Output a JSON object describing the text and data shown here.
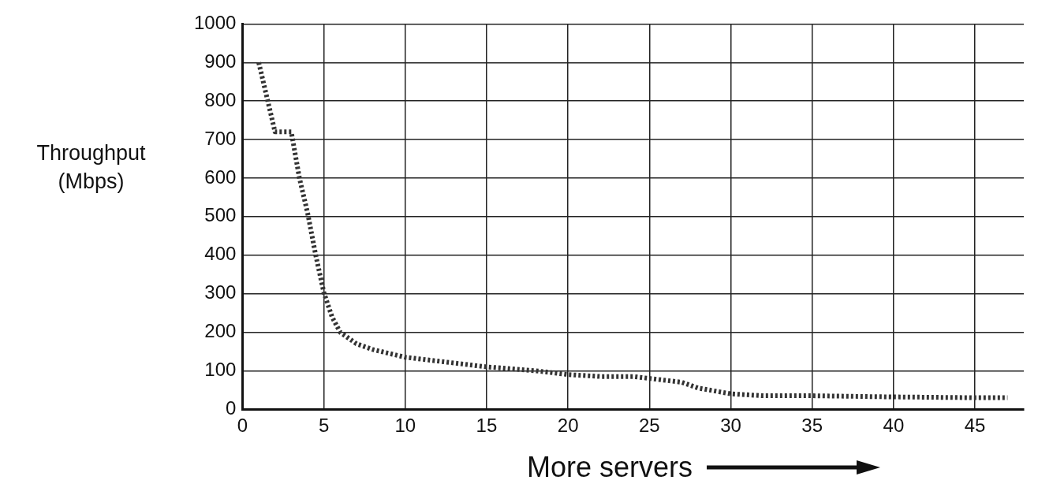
{
  "chart_data": {
    "type": "line",
    "xlabel": "More servers",
    "ylabel": "Throughput\n(Mbps)",
    "x": [
      1,
      2,
      3,
      3.5,
      4,
      4.5,
      5,
      5.5,
      6,
      7,
      8,
      10,
      12,
      15,
      18,
      20,
      22,
      24,
      26,
      27,
      28,
      30,
      32,
      35,
      40,
      45,
      47
    ],
    "series": [
      {
        "color": "#333333",
        "values": [
          900,
          720,
          720,
          600,
          510,
          400,
          303,
          240,
          200,
          170,
          155,
          135,
          125,
          110,
          100,
          90,
          85,
          85,
          75,
          70,
          55,
          40,
          35,
          35,
          32,
          30,
          30
        ]
      }
    ],
    "xlim": [
      0,
      48
    ],
    "xticks": [
      0,
      5,
      10,
      15,
      20,
      25,
      30,
      35,
      40,
      45
    ],
    "ylim": [
      0,
      1000
    ],
    "yticks": [
      0,
      100,
      200,
      300,
      400,
      500,
      600,
      700,
      800,
      900,
      1000
    ],
    "grid": true,
    "line_style": "dotted",
    "marker": "none",
    "legend": false
  }
}
